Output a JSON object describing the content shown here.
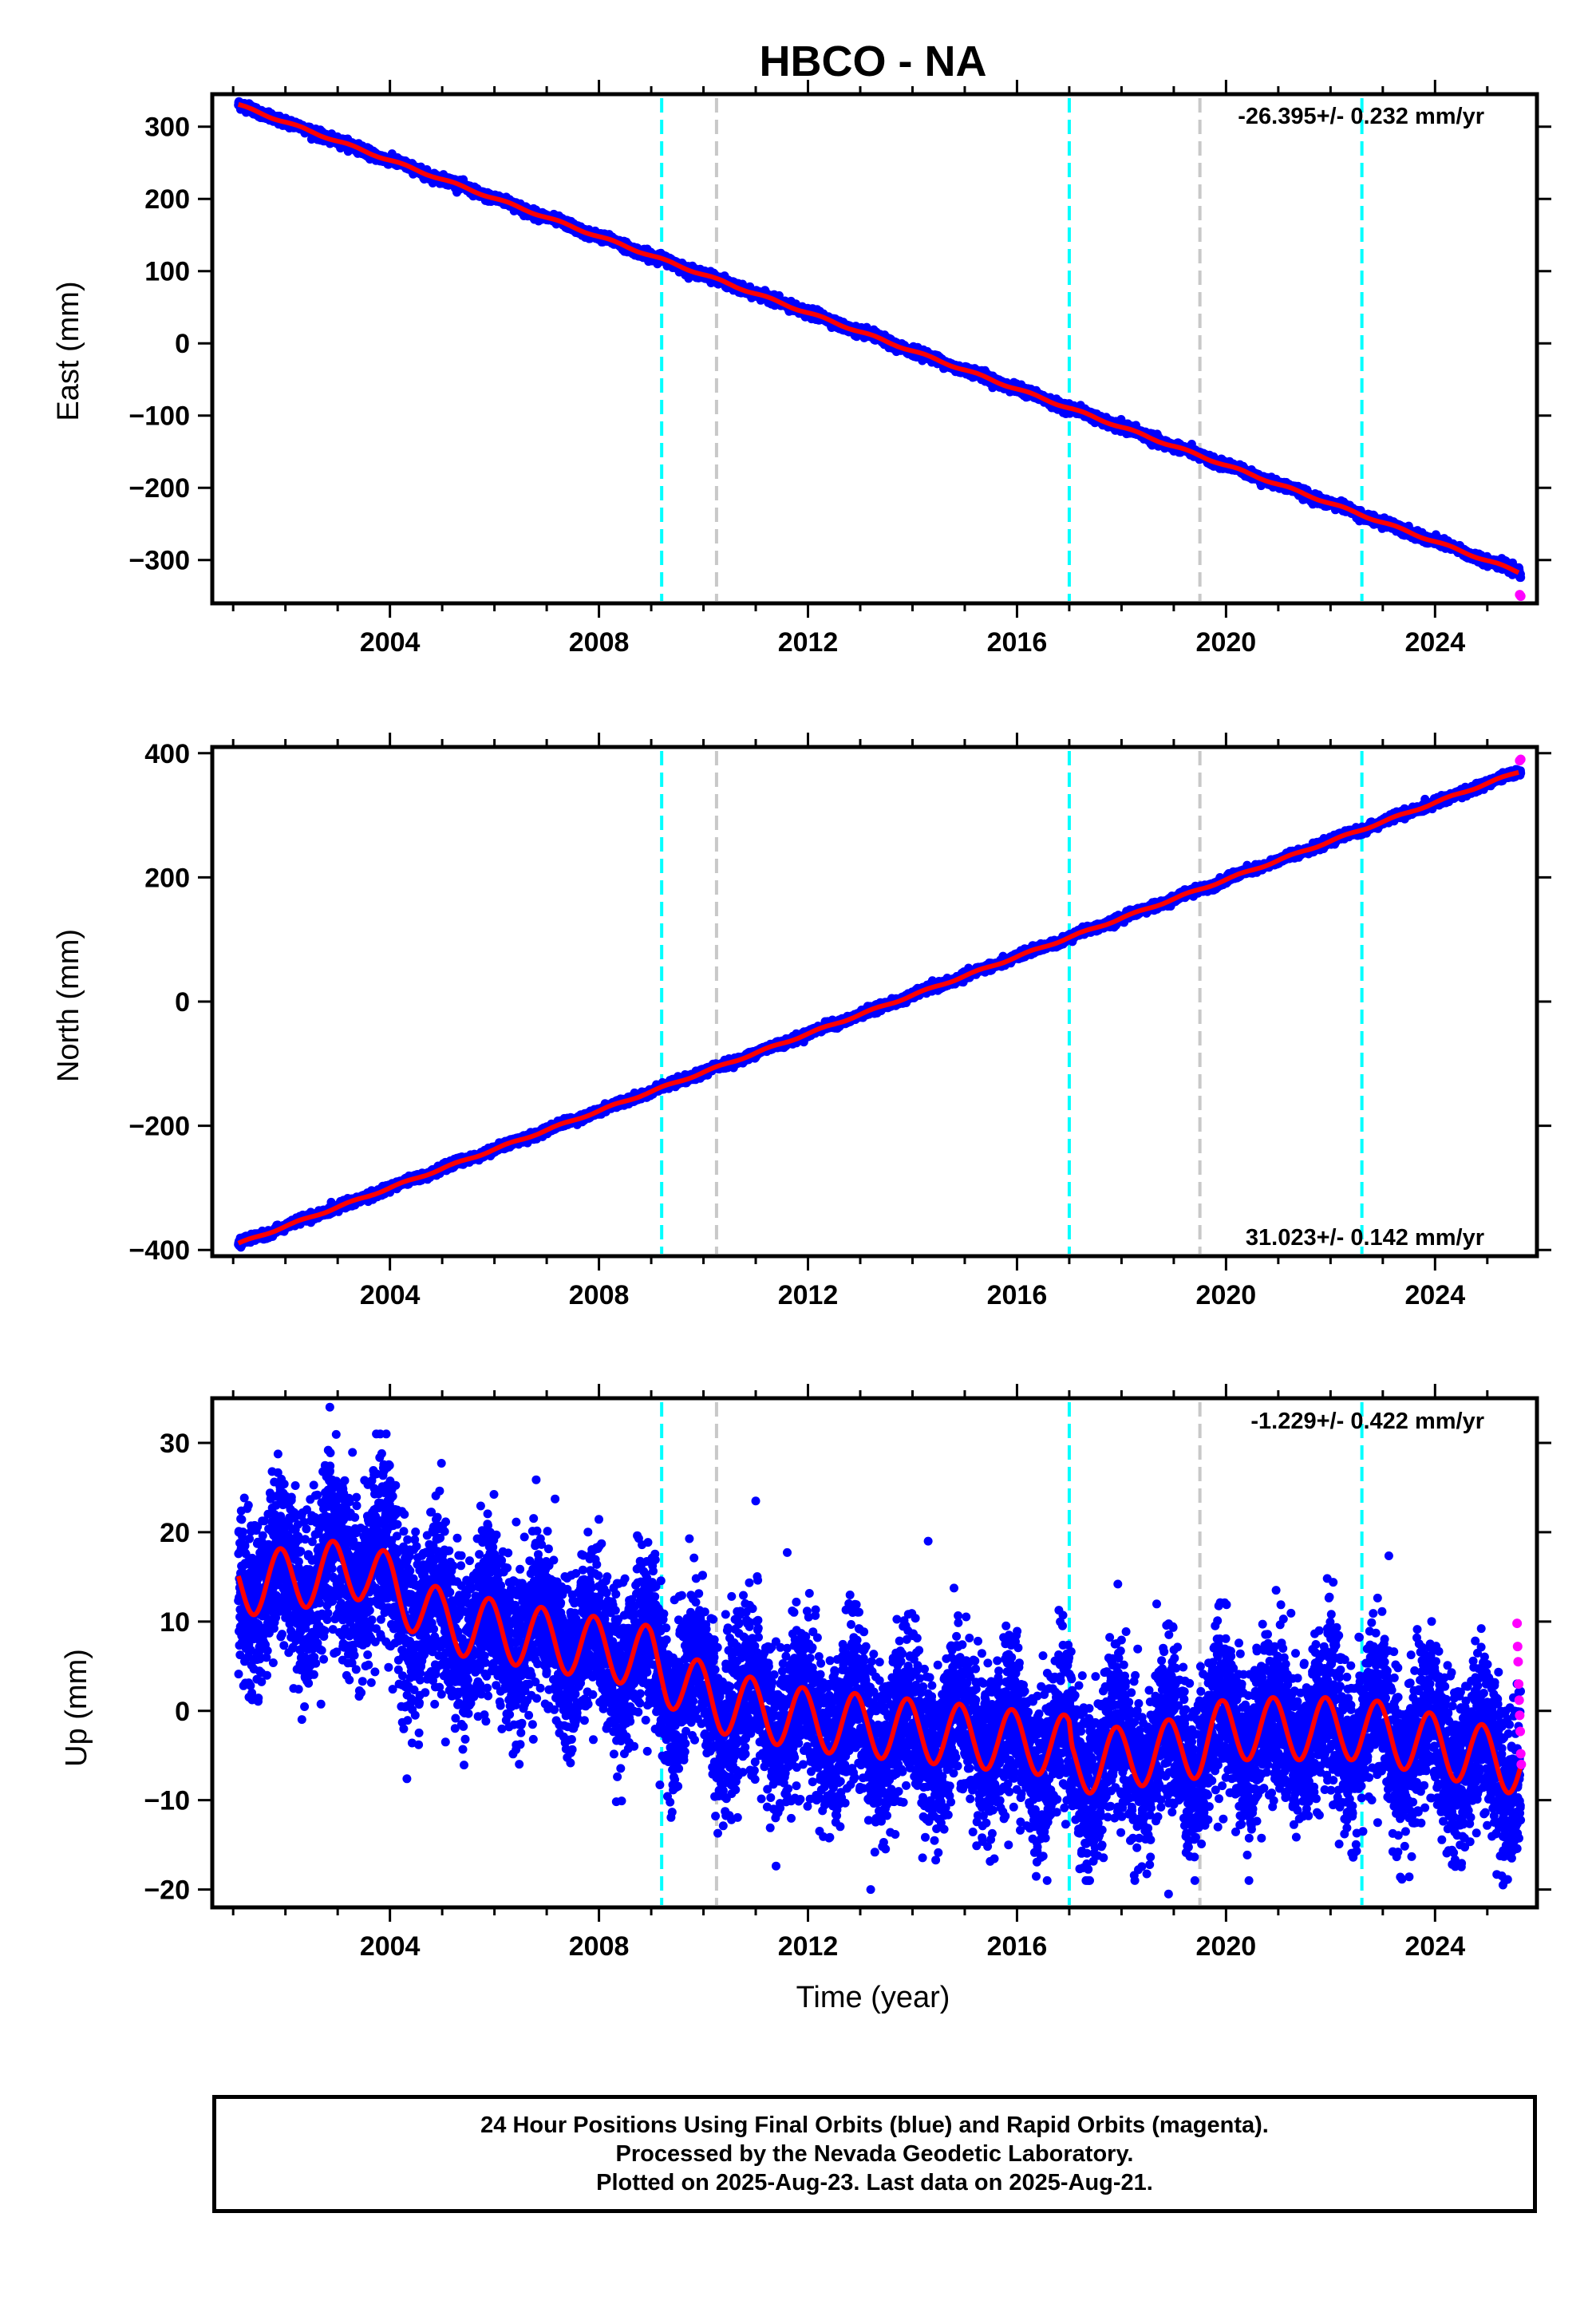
{
  "title": "HBCO - NA",
  "xlabel": "Time (year)",
  "colors": {
    "final": "#0000ff",
    "rapid": "#ff00ff",
    "model": "#ff0000",
    "cyan_event": "#00ffff",
    "gray_event": "#c8c8c8"
  },
  "footer": {
    "line1": "24 Hour Positions Using Final Orbits (blue) and Rapid Orbits (magenta).",
    "line2": "Processed by the Nevada Geodetic Laboratory.",
    "line3": "Plotted on 2025-Aug-23. Last data on 2025-Aug-21."
  },
  "chart_data": [
    {
      "type": "scatter",
      "component": "east",
      "ylabel": "East (mm)",
      "rate_label": "-26.395+/- 0.232 mm/yr",
      "rate_position": "top-right",
      "xlim": [
        2000.6,
        2025.95
      ],
      "ylim": [
        -360,
        345
      ],
      "x_ticks": [
        2004,
        2008,
        2012,
        2016,
        2020,
        2024
      ],
      "y_ticks": [
        300,
        200,
        100,
        0,
        -100,
        -200,
        -300
      ],
      "y_tick_labels": [
        "300",
        "200",
        "100",
        "0",
        "−100",
        "−200",
        "−300"
      ],
      "trend": {
        "x0": 2001.1,
        "y0": 330,
        "rate": -26.395,
        "x_end": 2025.64
      },
      "noise_mm": 3,
      "seasonal_mm": 1.5,
      "rapid_points": [
        [
          2025.62,
          -348
        ],
        [
          2025.64,
          -350
        ]
      ],
      "cyan_events": [
        2009.2,
        2017.0,
        2022.6
      ],
      "gray_events": [
        2010.25,
        2019.5
      ],
      "grid": false
    },
    {
      "type": "scatter",
      "component": "north",
      "ylabel": "North (mm)",
      "rate_label": "31.023+/- 0.142 mm/yr",
      "rate_position": "bottom-right",
      "xlim": [
        2000.6,
        2025.95
      ],
      "ylim": [
        -410,
        410
      ],
      "x_ticks": [
        2004,
        2008,
        2012,
        2016,
        2020,
        2024
      ],
      "y_ticks": [
        400,
        200,
        0,
        -200,
        -400
      ],
      "y_tick_labels": [
        "400",
        "200",
        "0",
        "−200",
        "−400"
      ],
      "trend": {
        "x0": 2001.1,
        "y0": -390,
        "rate": 31.023,
        "x_end": 2025.64
      },
      "noise_mm": 3,
      "seasonal_mm": 1.5,
      "rapid_points": [
        [
          2025.62,
          388
        ],
        [
          2025.64,
          390
        ]
      ],
      "cyan_events": [
        2009.2,
        2017.0,
        2022.6
      ],
      "gray_events": [
        2010.25,
        2019.5
      ],
      "grid": false
    },
    {
      "type": "scatter",
      "component": "up",
      "ylabel": "Up (mm)",
      "xlabel": "Time (year)",
      "rate_label": "-1.229+/- 0.422 mm/yr",
      "rate_position": "top-right",
      "xlim": [
        2000.6,
        2025.95
      ],
      "ylim": [
        -22,
        35
      ],
      "x_ticks": [
        2004,
        2008,
        2012,
        2016,
        2020,
        2024
      ],
      "y_ticks": [
        30,
        20,
        10,
        0,
        -10,
        -20
      ],
      "y_tick_labels": [
        "30",
        "20",
        "10",
        "0",
        "−10",
        "−20"
      ],
      "model_trend": [
        [
          2001.1,
          14
        ],
        [
          2003.5,
          16
        ],
        [
          2005.0,
          10
        ],
        [
          2009.0,
          6
        ],
        [
          2009.3,
          4
        ],
        [
          2010.3,
          1
        ],
        [
          2012.0,
          -1
        ],
        [
          2017.0,
          -4
        ],
        [
          2017.05,
          -6
        ],
        [
          2019.5,
          -4
        ],
        [
          2020.0,
          -2
        ],
        [
          2022.6,
          -2
        ],
        [
          2025.64,
          -6
        ]
      ],
      "seasonal_amplitude_mm": 3.5,
      "scatter_sigma_mm": 4.5,
      "rapid_points": [
        [
          2025.57,
          9.8
        ],
        [
          2025.58,
          7.2
        ],
        [
          2025.59,
          5.5
        ],
        [
          2025.6,
          3.0
        ],
        [
          2025.61,
          1.2
        ],
        [
          2025.62,
          -0.5
        ],
        [
          2025.63,
          -2.3
        ],
        [
          2025.64,
          -4.8
        ],
        [
          2025.65,
          -6.0
        ]
      ],
      "outliers": [
        [
          2002.85,
          34
        ],
        [
          2011.0,
          23.5
        ],
        [
          2014.3,
          19
        ],
        [
          2013.2,
          -20
        ],
        [
          2018.9,
          -20.5
        ],
        [
          2025.3,
          -19.5
        ]
      ],
      "cyan_events": [
        2009.2,
        2017.0,
        2022.6
      ],
      "gray_events": [
        2010.25,
        2019.5
      ],
      "grid": false
    }
  ]
}
